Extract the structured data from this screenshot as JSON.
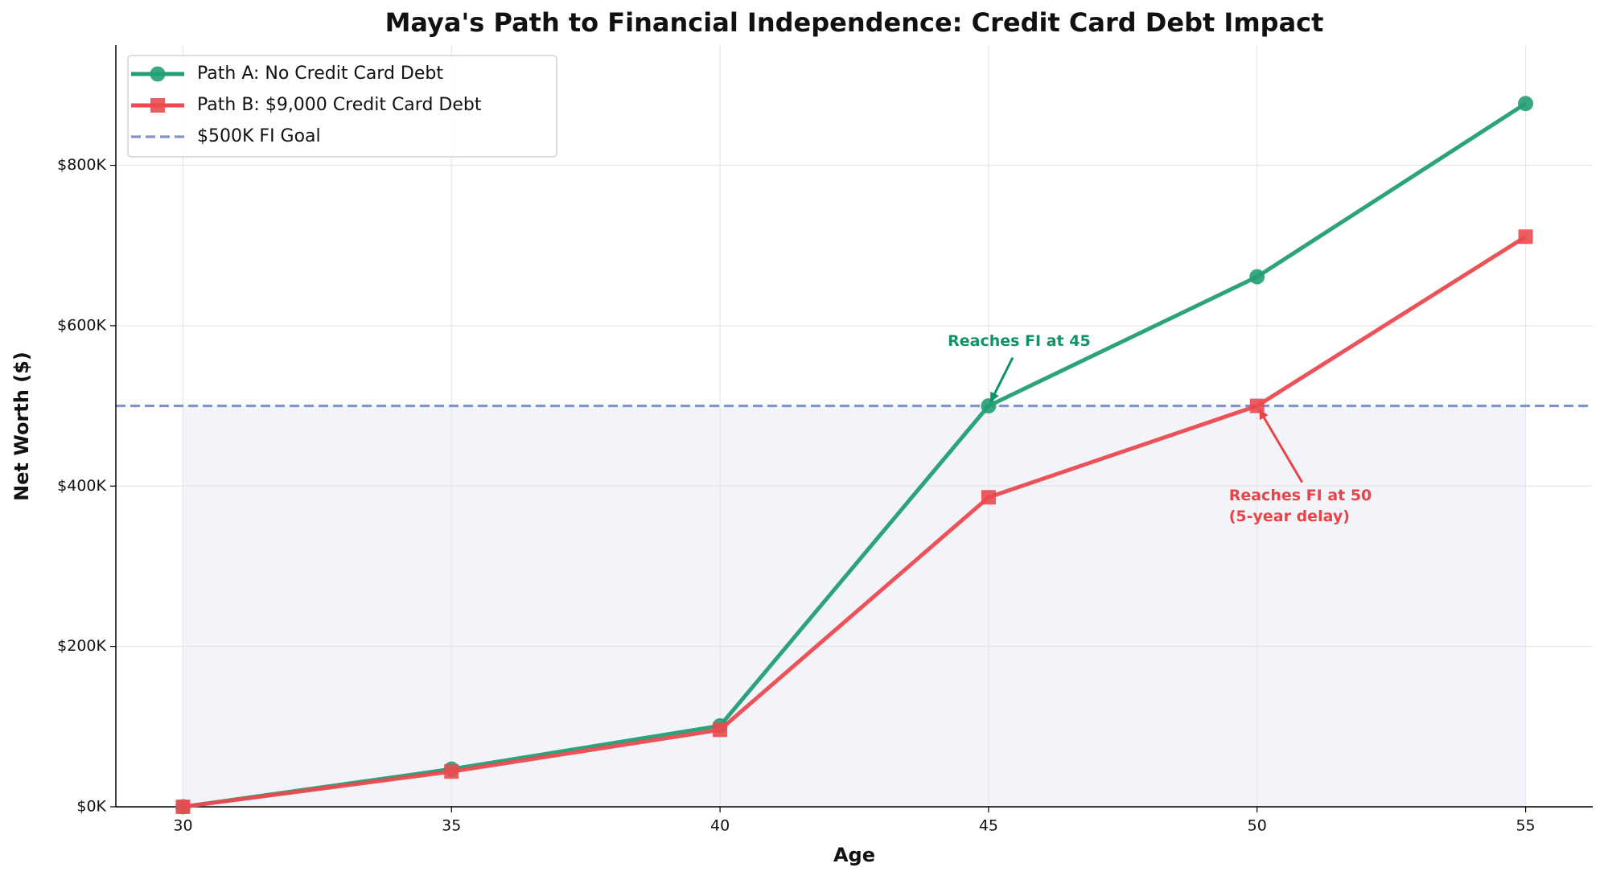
{
  "chart_data": {
    "type": "line",
    "title": "Maya's Path to Financial Independence: Credit Card Debt Impact",
    "xlabel": "Age",
    "ylabel": "Net Worth ($)",
    "x": [
      30,
      35,
      40,
      45,
      50,
      55
    ],
    "series": [
      {
        "name": "Path A: No Credit Card Debt",
        "color": "#229e74",
        "marker": "circle",
        "values": [
          0,
          47000,
          101000,
          500000,
          661000,
          877000
        ]
      },
      {
        "name": "Path B: $9,000 Credit Card Debt",
        "color": "#eb4a4f",
        "marker": "square",
        "values": [
          0,
          44000,
          96000,
          386000,
          500000,
          711000
        ]
      }
    ],
    "goal": {
      "name": "$500K FI Goal",
      "value": 500000,
      "color": "#7f93cc"
    },
    "annotations": [
      {
        "lines": [
          "Reaches FI at 45"
        ],
        "x": 45,
        "y": 500000,
        "color": "#0f9467"
      },
      {
        "lines": [
          "Reaches FI at 50",
          "(5-year delay)"
        ],
        "x": 50,
        "y": 500000,
        "color": "#e84448"
      }
    ],
    "xlim": [
      28.75,
      56.25
    ],
    "ylim": [
      0,
      950000
    ],
    "xticks": [
      30,
      35,
      40,
      45,
      50,
      55
    ],
    "yticks": [
      {
        "value": 0,
        "label": "$0K"
      },
      {
        "value": 200000,
        "label": "$200K"
      },
      {
        "value": 400000,
        "label": "$400K"
      },
      {
        "value": 600000,
        "label": "$600K"
      },
      {
        "value": 800000,
        "label": "$800K"
      }
    ],
    "grid": true,
    "legend": "upper left"
  }
}
